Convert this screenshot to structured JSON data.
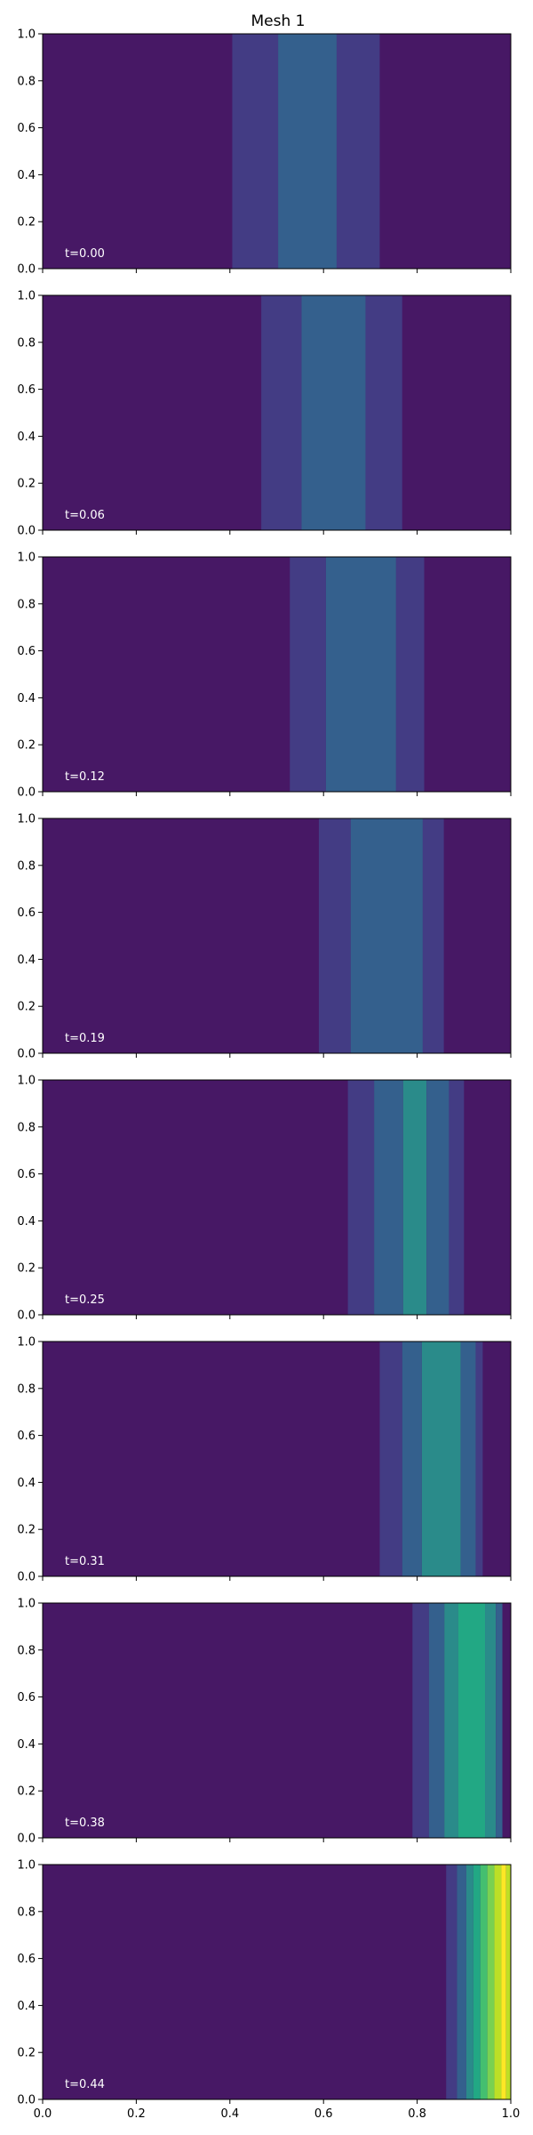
{
  "chart_data": {
    "type": "heatmap",
    "title": "Mesh 1",
    "xlim": [
      0.0,
      1.0
    ],
    "ylim": [
      0.0,
      1.0
    ],
    "x_ticks": [
      "0.0",
      "0.2",
      "0.4",
      "0.6",
      "0.8",
      "1.0"
    ],
    "y_ticks": [
      "0.0",
      "0.2",
      "0.4",
      "0.6",
      "0.8",
      "1.0"
    ],
    "colormap": "viridis",
    "background_color": "#471865",
    "panels": [
      {
        "time_label": "t=0.00",
        "bands": [
          {
            "x0": 0.405,
            "x1": 0.503,
            "color": "#433c84"
          },
          {
            "x0": 0.503,
            "x1": 0.628,
            "color": "#34608d"
          },
          {
            "x0": 0.628,
            "x1": 0.72,
            "color": "#433c84"
          }
        ]
      },
      {
        "time_label": "t=0.06",
        "bands": [
          {
            "x0": 0.467,
            "x1": 0.553,
            "color": "#433c84"
          },
          {
            "x0": 0.553,
            "x1": 0.69,
            "color": "#34608d"
          },
          {
            "x0": 0.69,
            "x1": 0.768,
            "color": "#433c84"
          }
        ]
      },
      {
        "time_label": "t=0.12",
        "bands": [
          {
            "x0": 0.528,
            "x1": 0.605,
            "color": "#433c84"
          },
          {
            "x0": 0.605,
            "x1": 0.755,
            "color": "#34608d"
          },
          {
            "x0": 0.755,
            "x1": 0.815,
            "color": "#433c84"
          }
        ]
      },
      {
        "time_label": "t=0.19",
        "bands": [
          {
            "x0": 0.59,
            "x1": 0.658,
            "color": "#433c84"
          },
          {
            "x0": 0.658,
            "x1": 0.812,
            "color": "#34608d"
          },
          {
            "x0": 0.812,
            "x1": 0.857,
            "color": "#433c84"
          }
        ]
      },
      {
        "time_label": "t=0.25",
        "bands": [
          {
            "x0": 0.652,
            "x1": 0.708,
            "color": "#433c84"
          },
          {
            "x0": 0.708,
            "x1": 0.77,
            "color": "#34608d"
          },
          {
            "x0": 0.77,
            "x1": 0.82,
            "color": "#2a8b8a"
          },
          {
            "x0": 0.82,
            "x1": 0.868,
            "color": "#34608d"
          },
          {
            "x0": 0.868,
            "x1": 0.9,
            "color": "#433c84"
          }
        ]
      },
      {
        "time_label": "t=0.31",
        "bands": [
          {
            "x0": 0.72,
            "x1": 0.768,
            "color": "#433c84"
          },
          {
            "x0": 0.768,
            "x1": 0.81,
            "color": "#34608d"
          },
          {
            "x0": 0.81,
            "x1": 0.893,
            "color": "#2a8b8a"
          },
          {
            "x0": 0.893,
            "x1": 0.925,
            "color": "#34608d"
          },
          {
            "x0": 0.925,
            "x1": 0.94,
            "color": "#433c84"
          }
        ]
      },
      {
        "time_label": "t=0.38",
        "bands": [
          {
            "x0": 0.79,
            "x1": 0.825,
            "color": "#433c84"
          },
          {
            "x0": 0.825,
            "x1": 0.858,
            "color": "#34608d"
          },
          {
            "x0": 0.858,
            "x1": 0.888,
            "color": "#2a8b8a"
          },
          {
            "x0": 0.888,
            "x1": 0.945,
            "color": "#22a884"
          },
          {
            "x0": 0.945,
            "x1": 0.968,
            "color": "#2a8b8a"
          },
          {
            "x0": 0.968,
            "x1": 0.982,
            "color": "#34608d"
          }
        ]
      },
      {
        "time_label": "t=0.44",
        "bands": [
          {
            "x0": 0.862,
            "x1": 0.885,
            "color": "#433c84"
          },
          {
            "x0": 0.885,
            "x1": 0.905,
            "color": "#34608d"
          },
          {
            "x0": 0.905,
            "x1": 0.92,
            "color": "#2a8b8a"
          },
          {
            "x0": 0.92,
            "x1": 0.935,
            "color": "#22a884"
          },
          {
            "x0": 0.935,
            "x1": 0.95,
            "color": "#44bf70"
          },
          {
            "x0": 0.95,
            "x1": 0.965,
            "color": "#7ad151"
          },
          {
            "x0": 0.965,
            "x1": 0.98,
            "color": "#bddf26"
          },
          {
            "x0": 0.98,
            "x1": 0.99,
            "color": "#fde725"
          },
          {
            "x0": 0.99,
            "x1": 1.0,
            "color": "#bddf26"
          }
        ]
      }
    ]
  }
}
